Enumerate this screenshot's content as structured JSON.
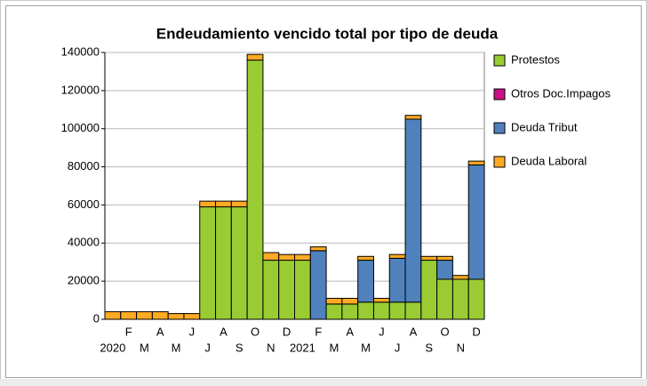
{
  "chart_data": {
    "type": "stacked_bar",
    "title": "Endeudamiento vencido total por tipo de deuda",
    "categories": [
      "2020",
      "F",
      "M",
      "A",
      "M",
      "J",
      "J",
      "A",
      "S",
      "O",
      "N",
      "D",
      "2021",
      "F",
      "M",
      "A",
      "M",
      "J",
      "J",
      "A",
      "S",
      "O",
      "N",
      "D"
    ],
    "series": [
      {
        "name": "Protestos",
        "color": "#99cc33",
        "values": [
          0,
          0,
          0,
          0,
          0,
          0,
          59000,
          59000,
          59000,
          136000,
          31000,
          31000,
          31000,
          0,
          8000,
          8000,
          9000,
          9000,
          9000,
          9000,
          31000,
          21000,
          21000,
          21000
        ]
      },
      {
        "name": "Otros Doc.Impagos",
        "color": "#cc1188",
        "values": [
          0,
          0,
          0,
          0,
          0,
          0,
          0,
          0,
          0,
          0,
          0,
          0,
          0,
          0,
          0,
          0,
          0,
          0,
          0,
          0,
          0,
          0,
          0,
          0
        ]
      },
      {
        "name": "Deuda Tribut",
        "color": "#4f81bd",
        "values": [
          0,
          0,
          0,
          0,
          0,
          0,
          0,
          0,
          0,
          0,
          0,
          0,
          0,
          36000,
          0,
          0,
          22000,
          0,
          23000,
          96000,
          0,
          10000,
          0,
          60000
        ]
      },
      {
        "name": "Deuda Laboral",
        "color": "#ffaa22",
        "values": [
          4000,
          4000,
          4000,
          4000,
          3000,
          3000,
          3000,
          3000,
          3000,
          3000,
          4000,
          3000,
          3000,
          2000,
          3000,
          3000,
          2000,
          2000,
          2000,
          2000,
          2000,
          2000,
          2000,
          2000
        ]
      }
    ],
    "ylim": [
      0,
      140000
    ],
    "yticks": [
      0,
      20000,
      40000,
      60000,
      80000,
      100000,
      120000,
      140000
    ],
    "grid": true,
    "legend": "right"
  }
}
